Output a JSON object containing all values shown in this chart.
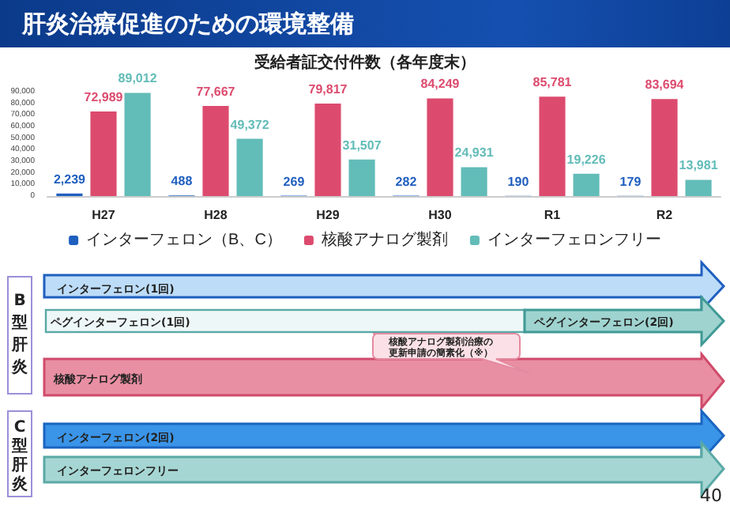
{
  "chart_data": {
    "type": "bar",
    "title": "肝炎治療促進のための環境整備",
    "subtitle": "受給者証交付件数（各年度末）",
    "categories": [
      "H27",
      "H28",
      "H29",
      "H30",
      "R1",
      "R2"
    ],
    "series": [
      {
        "name": "インターフェロン（B、C）",
        "color": "#1f5fbf",
        "values": [
          2239,
          488,
          269,
          282,
          190,
          179
        ],
        "value_labels": [
          "2,239",
          "488",
          "269",
          "282",
          "190",
          "179"
        ]
      },
      {
        "name": "核酸アナログ製剤",
        "color": "#dc4b6e",
        "values": [
          72989,
          77667,
          79817,
          84249,
          85781,
          83694
        ],
        "value_labels": [
          "72,989",
          "77,667",
          "79,817",
          "84,249",
          "85,781",
          "83,694"
        ]
      },
      {
        "name": "インターフェロンフリー",
        "color": "#62bcb8",
        "values": [
          89012,
          49372,
          31507,
          24931,
          19226,
          13981
        ],
        "value_labels": [
          "89,012",
          "49,372",
          "31,507",
          "24,931",
          "19,226",
          "13,981"
        ]
      }
    ],
    "ylim": [
      0,
      90000
    ],
    "yticks": [
      0,
      {
        "value": 10000,
        "label": "10,000"
      },
      {
        "value": 20000,
        "label": "20,000"
      },
      {
        "value": 30000,
        "label": "30,000"
      },
      {
        "value": 40000,
        "label": "40,000"
      },
      {
        "value": 50000,
        "label": "50,000"
      },
      {
        "value": 60000,
        "label": "60,000"
      },
      {
        "value": 70000,
        "label": "70,000"
      },
      {
        "value": 80000,
        "label": "80,000"
      },
      {
        "value": 90000,
        "label": "90,000"
      }
    ],
    "grid": false,
    "legend": "bottom",
    "annotations": [
      "B型肝炎",
      "C型肝炎",
      "インターフェロン(1回)",
      "ペグインターフェロン(1回)",
      "ペグインターフェロン(2回)",
      "核酸アナログ製剤治療の更新申請の簡素化（※）",
      "核酸アナログ製剤",
      "インターフェロン(2回)",
      "インターフェロンフリー",
      "40"
    ]
  }
}
